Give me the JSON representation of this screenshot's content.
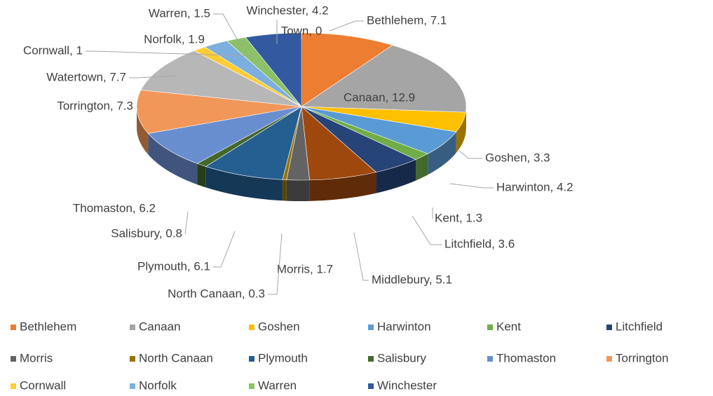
{
  "chart_data": {
    "type": "pie3d",
    "categories": [
      "Bethlehem",
      "Canaan",
      "Goshen",
      "Harwinton",
      "Kent",
      "Litchfield",
      "Middlebury",
      "Morris",
      "North Canaan",
      "Plymouth",
      "Salisbury",
      "Thomaston",
      "Torrington",
      "Watertown",
      "Cornwall",
      "Norfolk",
      "Warren",
      "Winchester",
      "Town"
    ],
    "values": [
      7.1,
      12.9,
      3.3,
      4.2,
      1.3,
      3.6,
      5.1,
      1.7,
      0.3,
      6.1,
      0.8,
      6.2,
      7.3,
      7.7,
      1,
      1.9,
      1.5,
      4.2,
      0
    ],
    "value_labels": [
      "Bethlehem, 7.1",
      "Canaan, 12.9",
      "Goshen, 3.3",
      "Harwinton, 4.2",
      "Kent, 1.3",
      "Litchfield, 3.6",
      "Middlebury, 5.1",
      "Morris, 1.7",
      "North Canaan, 0.3",
      "Plymouth, 6.1",
      "Salisbury, 0.8",
      "Thomaston, 6.2",
      "Torrington, 7.3",
      "Watertown, 7.7",
      "Cornwall, 1",
      "Norfolk, 1.9",
      "Warren, 1.5",
      "Winchester, 4.2",
      "Town, 0"
    ],
    "colors": [
      "#ED7D31",
      "#A5A5A5",
      "#FFC000",
      "#5B9BD5",
      "#70AD47",
      "#264478",
      "#9E480E",
      "#636363",
      "#997300",
      "#255E91",
      "#43682B",
      "#698ED0",
      "#F1975A",
      "#B7B7B7",
      "#FFCD33",
      "#7CAFDD",
      "#8CC168",
      "#335AA1",
      "#264478"
    ]
  }
}
